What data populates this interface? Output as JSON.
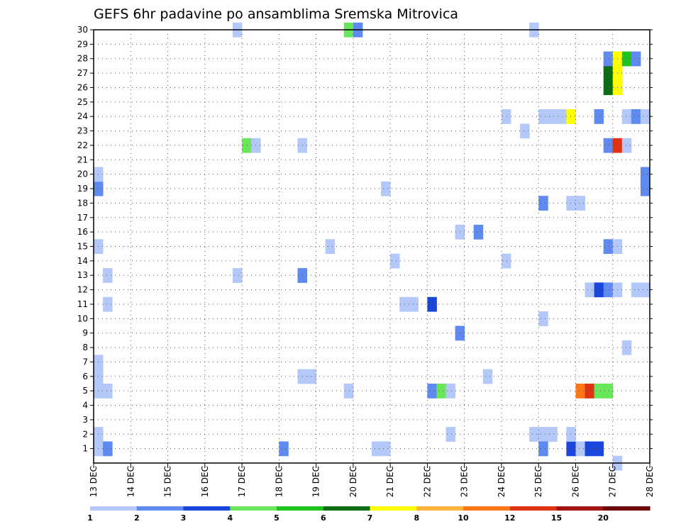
{
  "chart_data": {
    "type": "heatmap",
    "title": "GEFS 6hr padavine po ansamblima Sremska Mitrovica",
    "xlabel": "",
    "ylabel": "",
    "x_tick_labels": [
      "13 DEC",
      "14 DEC",
      "15 DEC",
      "16 DEC",
      "17 DEC",
      "18 DEC",
      "19 DEC",
      "20 DEC",
      "21 DEC",
      "22 DEC",
      "23 DEC",
      "24 DEC",
      "25 DEC",
      "26 DEC",
      "27 DEC",
      "28 DEC"
    ],
    "x_range_days": [
      13,
      28
    ],
    "y_tick_labels": [
      "1",
      "2",
      "3",
      "4",
      "5",
      "6",
      "7",
      "8",
      "9",
      "10",
      "11",
      "12",
      "13",
      "14",
      "15",
      "16",
      "17",
      "18",
      "19",
      "20",
      "21",
      "22",
      "23",
      "24",
      "25",
      "26",
      "27",
      "28",
      "29",
      "30"
    ],
    "y_range": [
      0,
      30
    ],
    "grid": true,
    "colorbar": {
      "labels": [
        "1",
        "2",
        "3",
        "4",
        "5",
        "6",
        "7",
        "8",
        "10",
        "12",
        "15",
        "20"
      ],
      "colors": [
        "#b4c8fa",
        "#5f8af0",
        "#1a46dc",
        "#6ae65a",
        "#1ec31e",
        "#0a6e14",
        "#ffff00",
        "#ffb43c",
        "#ff7814",
        "#e03214",
        "#a01414",
        "#6e0a0a"
      ]
    },
    "cells": [
      {
        "x": 13.0,
        "member": 1,
        "v": 1
      },
      {
        "x": 13.0,
        "member": 2,
        "v": 1
      },
      {
        "x": 13.0,
        "member": 5,
        "v": 1
      },
      {
        "x": 13.25,
        "member": 5,
        "v": 1
      },
      {
        "x": 13.0,
        "member": 6,
        "v": 1
      },
      {
        "x": 13.0,
        "member": 7,
        "v": 1
      },
      {
        "x": 13.25,
        "member": 11,
        "v": 1
      },
      {
        "x": 13.25,
        "member": 13,
        "v": 1
      },
      {
        "x": 13.0,
        "member": 15,
        "v": 1
      },
      {
        "x": 13.0,
        "member": 19,
        "v": 2
      },
      {
        "x": 13.0,
        "member": 20,
        "v": 1
      },
      {
        "x": 13.25,
        "member": 1,
        "v": 2
      },
      {
        "x": 16.75,
        "member": 13,
        "v": 1
      },
      {
        "x": 16.75,
        "member": 30,
        "v": 1
      },
      {
        "x": 17.0,
        "member": 22,
        "v": 4
      },
      {
        "x": 17.25,
        "member": 22,
        "v": 1
      },
      {
        "x": 18.0,
        "member": 1,
        "v": 2
      },
      {
        "x": 18.5,
        "member": 6,
        "v": 1
      },
      {
        "x": 18.75,
        "member": 6,
        "v": 1
      },
      {
        "x": 18.5,
        "member": 13,
        "v": 2
      },
      {
        "x": 18.5,
        "member": 22,
        "v": 1
      },
      {
        "x": 19.25,
        "member": 15,
        "v": 1
      },
      {
        "x": 19.75,
        "member": 5,
        "v": 1
      },
      {
        "x": 19.75,
        "member": 30,
        "v": 4
      },
      {
        "x": 20.0,
        "member": 30,
        "v": 2
      },
      {
        "x": 20.5,
        "member": 1,
        "v": 1
      },
      {
        "x": 20.75,
        "member": 1,
        "v": 1
      },
      {
        "x": 20.75,
        "member": 19,
        "v": 1
      },
      {
        "x": 21.0,
        "member": 14,
        "v": 1
      },
      {
        "x": 21.25,
        "member": 11,
        "v": 1
      },
      {
        "x": 21.5,
        "member": 11,
        "v": 1
      },
      {
        "x": 22.0,
        "member": 5,
        "v": 2
      },
      {
        "x": 22.0,
        "member": 11,
        "v": 3
      },
      {
        "x": 22.25,
        "member": 5,
        "v": 4
      },
      {
        "x": 22.5,
        "member": 5,
        "v": 1
      },
      {
        "x": 22.5,
        "member": 2,
        "v": 1
      },
      {
        "x": 22.75,
        "member": 9,
        "v": 2
      },
      {
        "x": 22.75,
        "member": 16,
        "v": 1
      },
      {
        "x": 23.25,
        "member": 16,
        "v": 2
      },
      {
        "x": 23.5,
        "member": 6,
        "v": 1
      },
      {
        "x": 24.0,
        "member": 14,
        "v": 1
      },
      {
        "x": 24.0,
        "member": 24,
        "v": 1
      },
      {
        "x": 24.5,
        "member": 23,
        "v": 1
      },
      {
        "x": 24.75,
        "member": 2,
        "v": 1
      },
      {
        "x": 25.0,
        "member": 2,
        "v": 1
      },
      {
        "x": 25.25,
        "member": 2,
        "v": 1
      },
      {
        "x": 25.0,
        "member": 1,
        "v": 2
      },
      {
        "x": 25.0,
        "member": 10,
        "v": 1
      },
      {
        "x": 25.0,
        "member": 18,
        "v": 2
      },
      {
        "x": 25.0,
        "member": 24,
        "v": 1
      },
      {
        "x": 25.25,
        "member": 24,
        "v": 1
      },
      {
        "x": 25.5,
        "member": 24,
        "v": 1
      },
      {
        "x": 24.75,
        "member": 30,
        "v": 1
      },
      {
        "x": 25.75,
        "member": 24,
        "v": 7
      },
      {
        "x": 25.75,
        "member": 1,
        "v": 3
      },
      {
        "x": 25.75,
        "member": 2,
        "v": 1
      },
      {
        "x": 25.75,
        "member": 18,
        "v": 1
      },
      {
        "x": 26.0,
        "member": 18,
        "v": 1
      },
      {
        "x": 26.0,
        "member": 5,
        "v": 10
      },
      {
        "x": 26.25,
        "member": 5,
        "v": 12
      },
      {
        "x": 26.5,
        "member": 5,
        "v": 4
      },
      {
        "x": 26.75,
        "member": 5,
        "v": 4
      },
      {
        "x": 26.0,
        "member": 1,
        "v": 1
      },
      {
        "x": 26.25,
        "member": 1,
        "v": 3
      },
      {
        "x": 26.5,
        "member": 1,
        "v": 3
      },
      {
        "x": 26.25,
        "member": 12,
        "v": 1
      },
      {
        "x": 26.5,
        "member": 12,
        "v": 3
      },
      {
        "x": 26.75,
        "member": 12,
        "v": 2
      },
      {
        "x": 27.0,
        "member": 12,
        "v": 1
      },
      {
        "x": 26.5,
        "member": 24,
        "v": 2
      },
      {
        "x": 26.75,
        "member": 15,
        "v": 2
      },
      {
        "x": 27.0,
        "member": 15,
        "v": 1
      },
      {
        "x": 26.75,
        "member": 22,
        "v": 2
      },
      {
        "x": 27.0,
        "member": 22,
        "v": 12
      },
      {
        "x": 27.25,
        "member": 22,
        "v": 1
      },
      {
        "x": 26.75,
        "member": 26,
        "v": 6
      },
      {
        "x": 26.75,
        "member": 27,
        "v": 6
      },
      {
        "x": 27.0,
        "member": 26,
        "v": 7
      },
      {
        "x": 27.0,
        "member": 27,
        "v": 7
      },
      {
        "x": 26.75,
        "member": 28,
        "v": 2
      },
      {
        "x": 27.0,
        "member": 28,
        "v": 7
      },
      {
        "x": 27.25,
        "member": 28,
        "v": 5
      },
      {
        "x": 27.5,
        "member": 28,
        "v": 2
      },
      {
        "x": 27.0,
        "member": 0,
        "v": 1
      },
      {
        "x": 27.25,
        "member": 8,
        "v": 1
      },
      {
        "x": 27.25,
        "member": 24,
        "v": 1
      },
      {
        "x": 27.5,
        "member": 24,
        "v": 2
      },
      {
        "x": 27.75,
        "member": 24,
        "v": 1
      },
      {
        "x": 27.5,
        "member": 12,
        "v": 1
      },
      {
        "x": 27.75,
        "member": 12,
        "v": 1
      },
      {
        "x": 27.75,
        "member": 19,
        "v": 2
      },
      {
        "x": 27.75,
        "member": 20,
        "v": 2
      }
    ]
  }
}
